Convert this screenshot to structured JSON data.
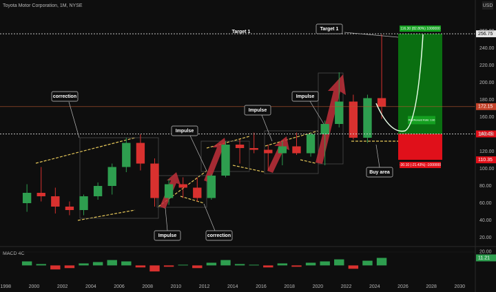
{
  "chart_data": {
    "type": "candlestick",
    "title": "Toyota Motor Corporation, 1M, NYSE",
    "currency": "USD",
    "x": [
      1999,
      2000,
      2001,
      2002,
      2003,
      2004,
      2005,
      2006,
      2007,
      2008,
      2009,
      2010,
      2011,
      2012,
      2013,
      2014,
      2015,
      2016,
      2017,
      2018,
      2019,
      2020,
      2021,
      2022,
      2023,
      2024
    ],
    "open": [
      60,
      72,
      68,
      56,
      52,
      68,
      80,
      102,
      130,
      106,
      66,
      82,
      78,
      66,
      92,
      128,
      124,
      122,
      118,
      126,
      118,
      140,
      152,
      178,
      136,
      182
    ],
    "high": [
      82,
      102,
      78,
      62,
      70,
      84,
      106,
      136,
      140,
      112,
      88,
      90,
      90,
      94,
      132,
      134,
      142,
      128,
      132,
      142,
      142,
      156,
      212,
      186,
      186,
      256
    ],
    "low": [
      50,
      62,
      48,
      46,
      46,
      64,
      70,
      96,
      98,
      56,
      58,
      66,
      62,
      64,
      90,
      106,
      118,
      98,
      104,
      116,
      114,
      104,
      148,
      134,
      130,
      158
    ],
    "close": [
      72,
      68,
      56,
      52,
      68,
      80,
      102,
      130,
      106,
      66,
      82,
      78,
      66,
      92,
      128,
      124,
      122,
      118,
      126,
      118,
      140,
      152,
      178,
      136,
      182,
      172.15
    ],
    "up_color": "#2e9e4f",
    "down_color": "#d9312f",
    "xlim": [
      1997.6,
      2031.1
    ],
    "xticks": [
      1998,
      2000,
      2002,
      2004,
      2006,
      2008,
      2010,
      2012,
      2014,
      2016,
      2018,
      2020,
      2022,
      2024,
      2026,
      2028,
      2030
    ],
    "ylim": [
      12,
      288
    ],
    "yticks": [
      {
        "value": 20,
        "label": "20.00"
      },
      {
        "value": 40,
        "label": "40.00"
      },
      {
        "value": 60,
        "label": "60.00"
      },
      {
        "value": 80,
        "label": "80.00"
      },
      {
        "value": 100,
        "label": "100.00"
      },
      {
        "value": 120,
        "label": "120.00"
      },
      {
        "value": 140,
        "label": "140.00"
      },
      {
        "value": 160,
        "label": "160.00"
      },
      {
        "value": 180,
        "label": "180.00"
      },
      {
        "value": 200,
        "label": "200.00"
      },
      {
        "value": 220,
        "label": "220.00"
      },
      {
        "value": 240,
        "label": "240.00"
      },
      {
        "value": 260,
        "label": "260.00"
      }
    ],
    "grid": true,
    "current_price": {
      "value": 172.15,
      "label": "172.15"
    },
    "position": {
      "target": 256.75,
      "entry": 140.45,
      "stop": 110.35,
      "profit_label": "116.30 (82.80%) 1000000",
      "loss_label": "-30.10 (-21.43%) -1000000",
      "ratio_label": "Risk/Reward Ratio: 3.86"
    },
    "annotations": [
      "Target 1",
      "Target 1",
      "correction",
      "Impulse",
      "Impulse",
      "Impulse",
      "Impulse",
      "correction",
      "Buy area"
    ],
    "macd": {
      "name": "MACD 4C",
      "values": [
        6,
        2,
        -6,
        -4,
        3,
        5,
        8,
        6,
        -3,
        -9,
        -2,
        1,
        -4,
        4,
        8,
        2,
        1,
        -3,
        3,
        -2,
        4,
        6,
        9,
        -5,
        7,
        11.21
      ],
      "ylim": [
        -15,
        24
      ],
      "yticks": [
        {
          "value": 20,
          "label": "20.00"
        }
      ],
      "last": {
        "value": 11.21,
        "label": "11.21"
      }
    }
  }
}
